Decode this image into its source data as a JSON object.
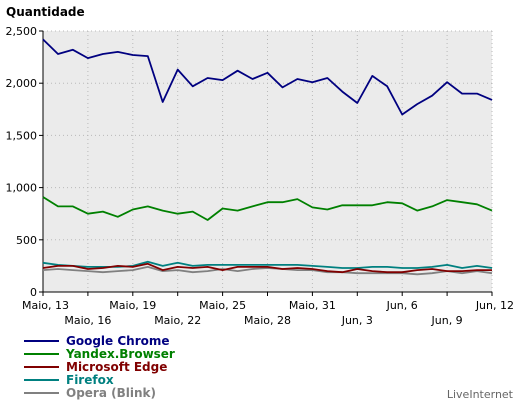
{
  "chart_data": {
    "type": "line",
    "ylabel": "Quantidade",
    "ylim": [
      0,
      2500
    ],
    "yticks": [
      "0",
      "500",
      "1,000",
      "1,500",
      "2,000",
      "2,500"
    ],
    "ytick_values": [
      0,
      500,
      1000,
      1500,
      2000,
      2500
    ],
    "grid": true,
    "legend_position": "bottom-left",
    "x_tick_labels": [
      {
        "index": 0,
        "label": "Maio, 13",
        "row": 1
      },
      {
        "index": 3,
        "label": "Maio, 16",
        "row": 2
      },
      {
        "index": 6,
        "label": "Maio, 19",
        "row": 1
      },
      {
        "index": 9,
        "label": "Maio, 22",
        "row": 2
      },
      {
        "index": 12,
        "label": "Maio, 25",
        "row": 1
      },
      {
        "index": 15,
        "label": "Maio, 28",
        "row": 2
      },
      {
        "index": 18,
        "label": "Maio, 31",
        "row": 1
      },
      {
        "index": 21,
        "label": "Jun, 3",
        "row": 2
      },
      {
        "index": 24,
        "label": "Jun, 6",
        "row": 1
      },
      {
        "index": 27,
        "label": "Jun, 9",
        "row": 2
      },
      {
        "index": 30,
        "label": "Jun, 12",
        "row": 1
      }
    ],
    "x": [
      "Maio, 13",
      "Maio, 14",
      "Maio, 15",
      "Maio, 16",
      "Maio, 17",
      "Maio, 18",
      "Maio, 19",
      "Maio, 20",
      "Maio, 21",
      "Maio, 22",
      "Maio, 23",
      "Maio, 24",
      "Maio, 25",
      "Maio, 26",
      "Maio, 27",
      "Maio, 28",
      "Maio, 29",
      "Maio, 30",
      "Maio, 31",
      "Jun, 1",
      "Jun, 2",
      "Jun, 3",
      "Jun, 4",
      "Jun, 5",
      "Jun, 6",
      "Jun, 7",
      "Jun, 8",
      "Jun, 9",
      "Jun, 10",
      "Jun, 11",
      "Jun, 12"
    ],
    "series": [
      {
        "name": "Google Chrome",
        "color": "#000080",
        "values": [
          2420,
          2280,
          2320,
          2240,
          2280,
          2300,
          2270,
          2260,
          1820,
          2130,
          1970,
          2050,
          2030,
          2120,
          2040,
          2100,
          1960,
          2040,
          2010,
          2050,
          1920,
          1810,
          2070,
          1970,
          1700,
          1800,
          1880,
          2010,
          1900,
          1900,
          1840
        ]
      },
      {
        "name": "Yandex.Browser",
        "color": "#008000",
        "values": [
          910,
          820,
          820,
          750,
          770,
          720,
          790,
          820,
          780,
          750,
          770,
          690,
          800,
          780,
          820,
          860,
          860,
          890,
          810,
          790,
          830,
          830,
          830,
          860,
          850,
          780,
          820,
          880,
          860,
          840,
          780
        ]
      },
      {
        "name": "Microsoft Edge",
        "color": "#800000",
        "values": [
          230,
          250,
          250,
          220,
          230,
          250,
          240,
          270,
          210,
          240,
          230,
          240,
          210,
          240,
          240,
          240,
          220,
          230,
          220,
          200,
          190,
          220,
          200,
          190,
          190,
          210,
          220,
          200,
          200,
          210,
          210
        ]
      },
      {
        "name": "Firefox",
        "color": "#008080",
        "values": [
          280,
          260,
          250,
          240,
          240,
          240,
          250,
          290,
          250,
          280,
          250,
          260,
          260,
          260,
          260,
          260,
          260,
          260,
          250,
          240,
          230,
          230,
          240,
          240,
          230,
          230,
          240,
          260,
          230,
          250,
          230
        ]
      },
      {
        "name": "Opera (Blink)",
        "color": "#808080",
        "values": [
          210,
          220,
          210,
          200,
          190,
          200,
          210,
          240,
          200,
          210,
          190,
          200,
          220,
          200,
          220,
          230,
          220,
          210,
          210,
          190,
          190,
          180,
          180,
          180,
          180,
          170,
          180,
          200,
          180,
          200,
          180
        ]
      }
    ]
  },
  "watermark": "LiveInternet"
}
